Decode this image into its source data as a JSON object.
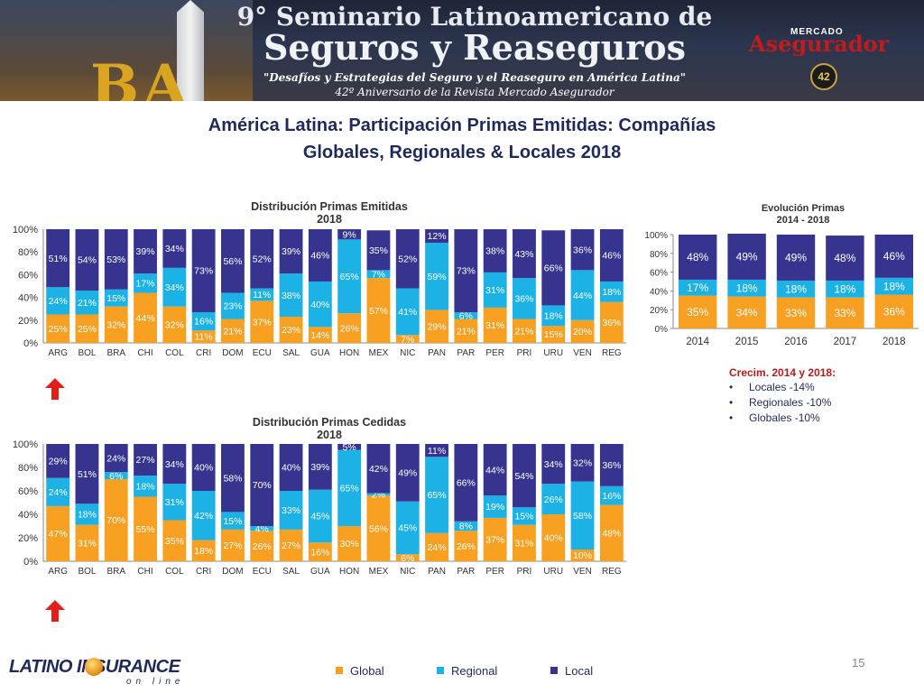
{
  "banner": {
    "title_line1": "9° Seminario Latinoamericano de",
    "title_line2": "Seguros y Reaseguros",
    "subtitle_line1": "\"Desafíos y Estrategias del Seguro y el Reaseguro en América Latina\"",
    "subtitle_line2": "42º Aniversario de la Revista Mercado Asegurador",
    "ba_letters": "BA",
    "logo_top": "MERCADO",
    "logo_main": "Asegurador",
    "seal_text": "42"
  },
  "slide": {
    "title_line1": "América Latina: Participación Primas Emitidas: Compañías",
    "title_line2": "Globales, Regionales & Locales 2018",
    "page_number": "15"
  },
  "colors": {
    "global": "#F7A021",
    "regional": "#1CB2E6",
    "local": "#37348F",
    "title": "#1F2A5A",
    "growth_title": "#B01E1E",
    "arrow": "#E0201B"
  },
  "growth": {
    "title": "Crecim. 2014 y 2018:",
    "items": [
      "Locales -14%",
      "Regionales -10%",
      "Globales -10%"
    ]
  },
  "legend": {
    "global": "Global",
    "regional": "Regional",
    "local": "Local"
  },
  "footer": {
    "brand": "LATINO INSURANCE",
    "tagline": "on line"
  },
  "chart_data": [
    {
      "id": "emitidas",
      "type": "bar",
      "stacked": true,
      "title_line1": "Distribución Primas Emitidas",
      "title_line2": "2018",
      "categories": [
        "ARG",
        "BOL",
        "BRA",
        "CHI",
        "COL",
        "CRI",
        "DOM",
        "ECU",
        "SAL",
        "GUA",
        "HON",
        "MEX",
        "NIC",
        "PAN",
        "PAR",
        "PER",
        "PRI",
        "URU",
        "VEN",
        "REG"
      ],
      "series": [
        {
          "key": "global",
          "values": [
            25,
            25,
            32,
            44,
            32,
            11,
            21,
            37,
            23,
            14,
            26,
            57,
            7,
            29,
            21,
            31,
            21,
            15,
            20,
            36
          ],
          "labels": [
            "25%",
            "25%",
            "32%",
            "44%",
            "32%",
            "11%",
            "21%",
            "37%",
            "23%",
            "14%",
            "26%",
            "57%",
            "7%",
            "29%",
            "21%",
            "31%",
            "21%",
            "15%",
            "20%",
            "36%"
          ]
        },
        {
          "key": "regional",
          "values": [
            24,
            21,
            15,
            17,
            34,
            16,
            23,
            11,
            38,
            40,
            65,
            7,
            41,
            59,
            6,
            31,
            36,
            18,
            44,
            18
          ],
          "labels": [
            "24%",
            "21%",
            "15%",
            "17%",
            "34%",
            "16%",
            "23%",
            "11%",
            "38%",
            "40%",
            "65%",
            "7%",
            "41%",
            "59%",
            "6%",
            "31%",
            "36%",
            "18%",
            "44%",
            "18%"
          ]
        },
        {
          "key": "local",
          "values": [
            51,
            54,
            53,
            39,
            34,
            73,
            56,
            52,
            39,
            46,
            9,
            35,
            52,
            12,
            73,
            38,
            43,
            66,
            36,
            46
          ],
          "labels": [
            "51%",
            "54%",
            "53%",
            "39%",
            "34%",
            "73%",
            "56%",
            "52%",
            "39%",
            "46%",
            "9%",
            "35%",
            "52%",
            "12%",
            "73%",
            "38%",
            "43%",
            "66%",
            "36%",
            "46%"
          ]
        }
      ],
      "yticks": [
        "0%",
        "20%",
        "40%",
        "60%",
        "80%",
        "100%"
      ],
      "ylim": [
        0,
        100
      ]
    },
    {
      "id": "cedidas",
      "type": "bar",
      "stacked": true,
      "title_line1": "Distribución Primas Cedidas",
      "title_line2": "2018",
      "categories": [
        "ARG",
        "BOL",
        "BRA",
        "CHI",
        "COL",
        "CRI",
        "DOM",
        "ECU",
        "SAL",
        "GUA",
        "HON",
        "MEX",
        "NIC",
        "PAN",
        "PAR",
        "PER",
        "PRI",
        "URU",
        "VEN",
        "REG"
      ],
      "series": [
        {
          "key": "global",
          "values": [
            47,
            31,
            70,
            55,
            35,
            18,
            27,
            26,
            27,
            16,
            30,
            56,
            6,
            24,
            26,
            37,
            31,
            40,
            10,
            48
          ],
          "labels": [
            "47%",
            "31%",
            "70%",
            "55%",
            "35%",
            "18%",
            "27%",
            "26%",
            "27%",
            "16%",
            "30%",
            "56%",
            "6%",
            "24%",
            "26%",
            "37%",
            "31%",
            "40%",
            "10%",
            "48%"
          ]
        },
        {
          "key": "regional",
          "values": [
            24,
            18,
            6,
            18,
            31,
            42,
            15,
            4,
            33,
            45,
            65,
            2,
            45,
            65,
            8,
            19,
            15,
            26,
            58,
            16
          ],
          "labels": [
            "24%",
            "18%",
            "6%",
            "18%",
            "31%",
            "42%",
            "15%",
            "4%",
            "33%",
            "45%",
            "65%",
            "2%",
            "45%",
            "65%",
            "8%",
            "19%",
            "15%",
            "26%",
            "58%",
            "16%"
          ]
        },
        {
          "key": "local",
          "values": [
            29,
            51,
            24,
            27,
            34,
            40,
            58,
            70,
            40,
            39,
            5,
            42,
            49,
            11,
            66,
            44,
            54,
            34,
            32,
            36
          ],
          "labels": [
            "29%",
            "51%",
            "24%",
            "27%",
            "34%",
            "40%",
            "58%",
            "70%",
            "40%",
            "39%",
            "5%",
            "42%",
            "49%",
            "11%",
            "66%",
            "44%",
            "54%",
            "34%",
            "32%",
            "36%"
          ]
        }
      ],
      "yticks": [
        "0%",
        "20%",
        "40%",
        "60%",
        "80%",
        "100%"
      ],
      "ylim": [
        0,
        100
      ]
    },
    {
      "id": "evolucion",
      "type": "bar",
      "stacked": true,
      "title_line1": "Evolución Primas",
      "title_line2": "2014 - 2018",
      "categories": [
        "2014",
        "2015",
        "2016",
        "2017",
        "2018"
      ],
      "series": [
        {
          "key": "global",
          "values": [
            35,
            34,
            33,
            33,
            36
          ],
          "labels": [
            "35%",
            "34%",
            "33%",
            "33%",
            "36%"
          ]
        },
        {
          "key": "regional",
          "values": [
            17,
            18,
            18,
            18,
            18
          ],
          "labels": [
            "17%",
            "18%",
            "18%",
            "18%",
            "18%"
          ]
        },
        {
          "key": "local",
          "values": [
            48,
            49,
            49,
            48,
            46
          ],
          "labels": [
            "48%",
            "49%",
            "49%",
            "48%",
            "46%"
          ]
        }
      ],
      "yticks": [
        "0%",
        "20%",
        "40%",
        "60%",
        "80%",
        "100%"
      ],
      "ylim": [
        0,
        100
      ]
    }
  ]
}
